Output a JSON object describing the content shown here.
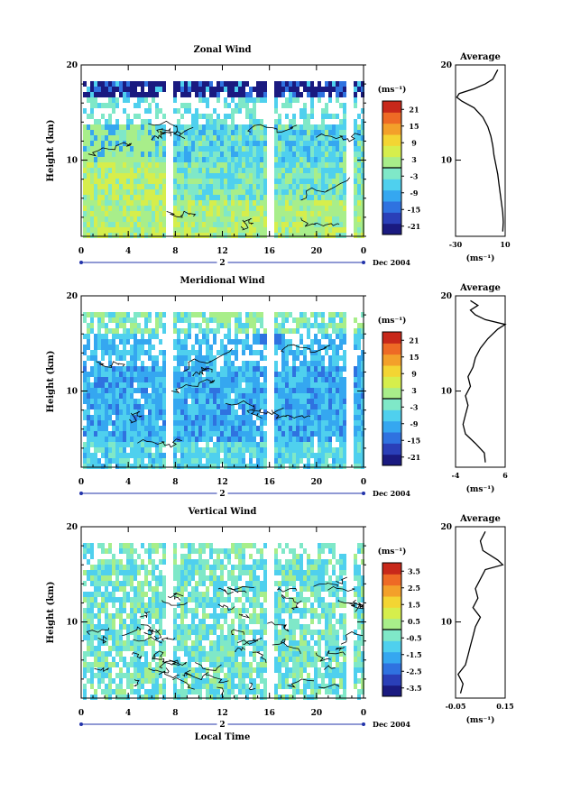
{
  "chart_data": [
    {
      "type": "heatmap",
      "title": "Zonal Wind",
      "ylabel": "Height (km)",
      "ylim": [
        2,
        20
      ],
      "yticks": [
        10,
        20
      ],
      "xlim": [
        0,
        24
      ],
      "xticks": [
        "0",
        "4",
        "8",
        "12",
        "16",
        "20",
        "0"
      ],
      "day_label": "2",
      "date_label": "Dec 2004",
      "colorbar": {
        "unit": "(ms⁻¹)",
        "ticks": [
          "21",
          "15",
          "9",
          "3",
          "-3",
          "-9",
          "-15",
          "-21"
        ],
        "range": [
          -24,
          24
        ]
      },
      "average": {
        "title": "Average",
        "xlabel": "(ms⁻¹)",
        "xticks": [
          "-30",
          "10"
        ],
        "xlim": [
          -30,
          10
        ],
        "yticks": [
          10,
          20
        ],
        "profile": [
          [
            2.5,
            8
          ],
          [
            3.5,
            8.5
          ],
          [
            4.5,
            8
          ],
          [
            5.5,
            7
          ],
          [
            6.5,
            6
          ],
          [
            7.5,
            5
          ],
          [
            8.5,
            4
          ],
          [
            9.5,
            2.5
          ],
          [
            10.5,
            1
          ],
          [
            11.5,
            0
          ],
          [
            12.5,
            -1.5
          ],
          [
            13.5,
            -4
          ],
          [
            14.5,
            -8
          ],
          [
            15.5,
            -15
          ],
          [
            16.2,
            -25
          ],
          [
            16.6,
            -29
          ],
          [
            17.0,
            -27
          ],
          [
            17.5,
            -15
          ],
          [
            18.0,
            -6
          ],
          [
            18.5,
            0
          ],
          [
            19.0,
            2
          ],
          [
            19.5,
            4
          ]
        ]
      }
    },
    {
      "type": "heatmap",
      "title": "Meridional Wind",
      "ylabel": "Height (km)",
      "ylim": [
        2,
        20
      ],
      "yticks": [
        10,
        20
      ],
      "xlim": [
        0,
        24
      ],
      "xticks": [
        "0",
        "4",
        "8",
        "12",
        "16",
        "20",
        "0"
      ],
      "day_label": "2",
      "date_label": "Dec 2004",
      "colorbar": {
        "unit": "(ms⁻¹)",
        "ticks": [
          "21",
          "15",
          "9",
          "3",
          "-3",
          "-9",
          "-15",
          "-21"
        ],
        "range": [
          -24,
          24
        ]
      },
      "average": {
        "title": "Average",
        "xlabel": "(ms⁻¹)",
        "xticks": [
          "-4",
          "6"
        ],
        "xlim": [
          -4,
          6
        ],
        "yticks": [
          10,
          20
        ],
        "profile": [
          [
            2.5,
            2
          ],
          [
            3.5,
            1.8
          ],
          [
            4.5,
            0
          ],
          [
            5.5,
            -2
          ],
          [
            6.5,
            -2.5
          ],
          [
            7.5,
            -2
          ],
          [
            8.5,
            -1.5
          ],
          [
            9.5,
            -2
          ],
          [
            10.5,
            -1
          ],
          [
            11.5,
            -1.5
          ],
          [
            12.5,
            -0.5
          ],
          [
            13.5,
            0
          ],
          [
            14.5,
            1
          ],
          [
            15.5,
            2.5
          ],
          [
            16.5,
            4.5
          ],
          [
            17.0,
            6
          ],
          [
            17.5,
            2
          ],
          [
            18.0,
            0
          ],
          [
            18.5,
            -1
          ],
          [
            19.0,
            0.5
          ],
          [
            19.5,
            -1
          ]
        ]
      }
    },
    {
      "type": "heatmap",
      "title": "Vertical Wind",
      "ylabel": "Height (km)",
      "xlabel": "Local Time",
      "ylim": [
        2,
        20
      ],
      "yticks": [
        10,
        20
      ],
      "xlim": [
        0,
        24
      ],
      "xticks": [
        "0",
        "4",
        "8",
        "12",
        "16",
        "20",
        "0"
      ],
      "day_label": "2",
      "date_label": "Dec 2004",
      "colorbar": {
        "unit": "(ms⁻¹)",
        "ticks": [
          "3.5",
          "2.5",
          "1.5",
          "0.5",
          "-0.5",
          "-1.5",
          "-2.5",
          "-3.5"
        ],
        "range": [
          -4,
          4
        ]
      },
      "average": {
        "title": "Average",
        "xlabel": "(ms⁻¹)",
        "xticks": [
          "-0.05",
          "0.15"
        ],
        "xlim": [
          -0.05,
          0.15
        ],
        "yticks": [
          10,
          20
        ],
        "profile": [
          [
            2.5,
            -0.03
          ],
          [
            3.5,
            -0.02
          ],
          [
            4.5,
            -0.04
          ],
          [
            5.5,
            -0.01
          ],
          [
            6.5,
            0.0
          ],
          [
            7.5,
            0.01
          ],
          [
            8.5,
            0.02
          ],
          [
            9.5,
            0.03
          ],
          [
            10.5,
            0.05
          ],
          [
            11.5,
            0.02
          ],
          [
            12.5,
            0.04
          ],
          [
            13.5,
            0.03
          ],
          [
            14.5,
            0.05
          ],
          [
            15.5,
            0.07
          ],
          [
            16.0,
            0.14
          ],
          [
            16.5,
            0.12
          ],
          [
            17.5,
            0.06
          ],
          [
            18.5,
            0.05
          ],
          [
            19.5,
            0.07
          ]
        ]
      }
    }
  ]
}
